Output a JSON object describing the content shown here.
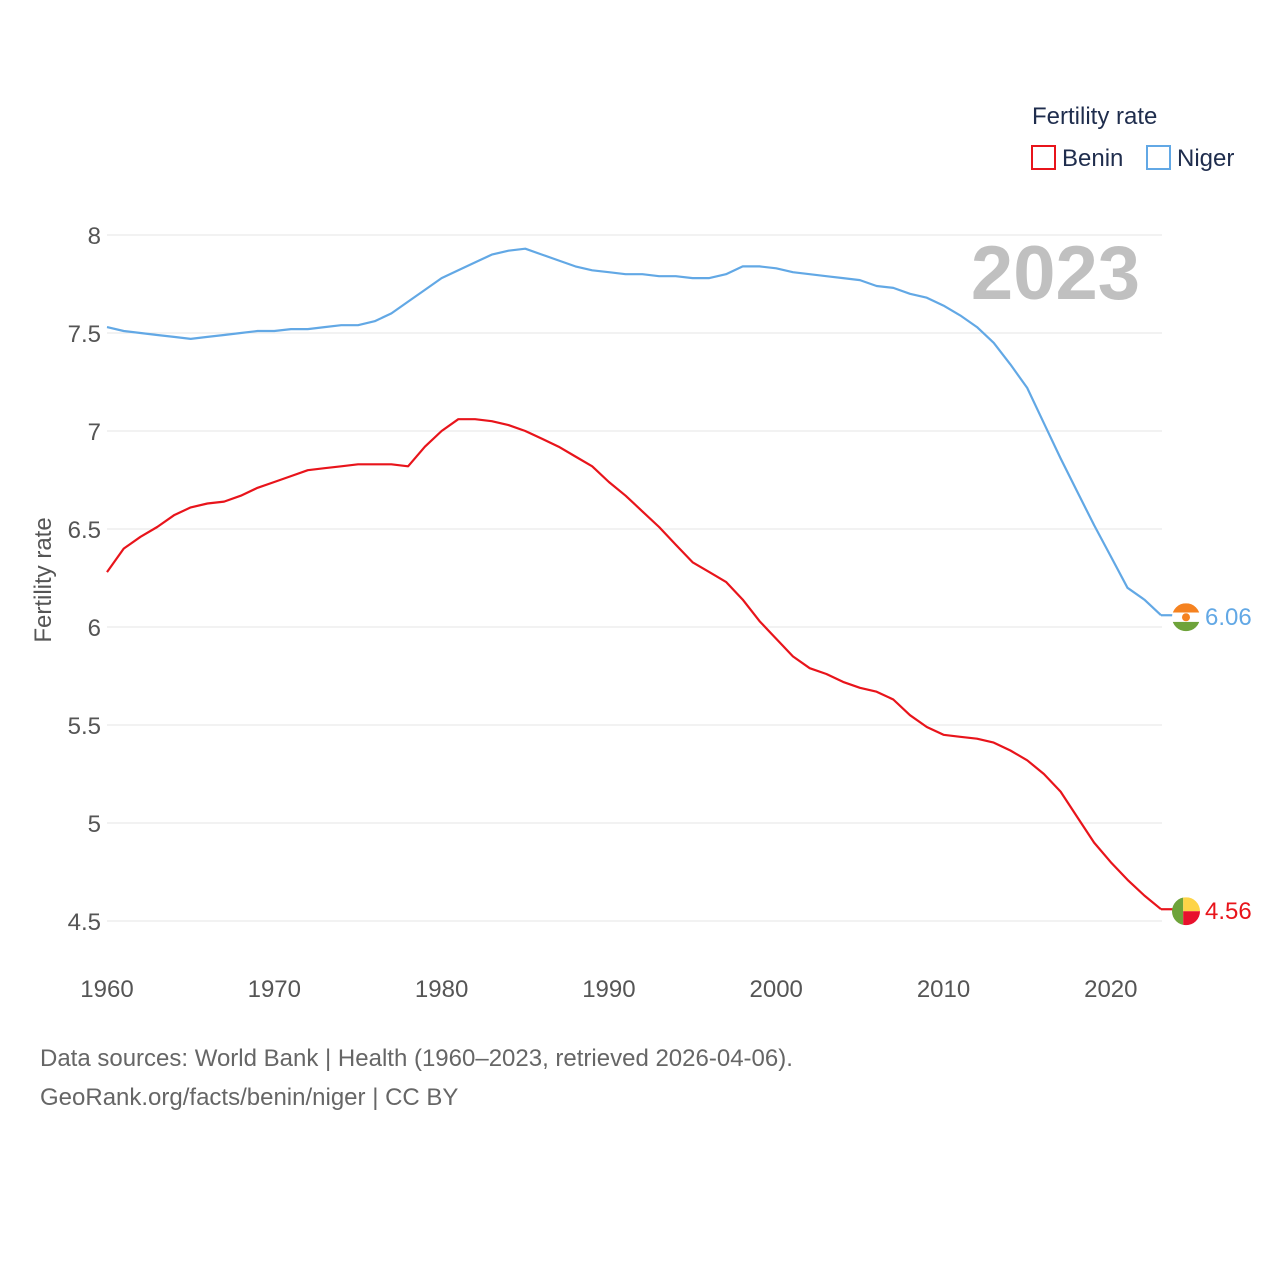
{
  "chart_data": {
    "type": "line",
    "title": "Fertility rate",
    "ylabel": "Fertility rate",
    "xlabel": "",
    "year_label": "2023",
    "xlim": [
      1960,
      2023
    ],
    "ylim": [
      4.45,
      8.1
    ],
    "xticks": [
      "1960",
      "1970",
      "1980",
      "1990",
      "2000",
      "2010",
      "2020"
    ],
    "yticks": [
      "4.5",
      "5",
      "5.5",
      "6",
      "6.5",
      "7",
      "7.5",
      "8"
    ],
    "legend_position": "top-right",
    "x": [
      1960,
      1961,
      1962,
      1963,
      1964,
      1965,
      1966,
      1967,
      1968,
      1969,
      1970,
      1971,
      1972,
      1973,
      1974,
      1975,
      1976,
      1977,
      1978,
      1979,
      1980,
      1981,
      1982,
      1983,
      1984,
      1985,
      1986,
      1987,
      1988,
      1989,
      1990,
      1991,
      1992,
      1993,
      1994,
      1995,
      1996,
      1997,
      1998,
      1999,
      2000,
      2001,
      2002,
      2003,
      2004,
      2005,
      2006,
      2007,
      2008,
      2009,
      2010,
      2011,
      2012,
      2013,
      2014,
      2015,
      2016,
      2017,
      2018,
      2019,
      2020,
      2021,
      2022,
      2023
    ],
    "series": [
      {
        "name": "Benin",
        "color": "#e8141b",
        "end_label": "4.56",
        "flag": "benin-flag",
        "values": [
          6.28,
          6.4,
          6.46,
          6.51,
          6.57,
          6.61,
          6.63,
          6.64,
          6.67,
          6.71,
          6.74,
          6.77,
          6.8,
          6.81,
          6.82,
          6.83,
          6.83,
          6.83,
          6.82,
          6.92,
          7.0,
          7.06,
          7.06,
          7.05,
          7.03,
          7.0,
          6.96,
          6.92,
          6.87,
          6.82,
          6.74,
          6.67,
          6.59,
          6.51,
          6.42,
          6.33,
          6.28,
          6.23,
          6.14,
          6.03,
          5.94,
          5.85,
          5.79,
          5.76,
          5.72,
          5.69,
          5.67,
          5.63,
          5.55,
          5.49,
          5.45,
          5.44,
          5.43,
          5.41,
          5.37,
          5.32,
          5.25,
          5.16,
          5.03,
          4.9,
          4.8,
          4.71,
          4.63,
          4.56
        ]
      },
      {
        "name": "Niger",
        "color": "#62a8e5",
        "end_label": "6.06",
        "flag": "niger-flag",
        "values": [
          7.53,
          7.51,
          7.5,
          7.49,
          7.48,
          7.47,
          7.48,
          7.49,
          7.5,
          7.51,
          7.51,
          7.52,
          7.52,
          7.53,
          7.54,
          7.54,
          7.56,
          7.6,
          7.66,
          7.72,
          7.78,
          7.82,
          7.86,
          7.9,
          7.92,
          7.93,
          7.9,
          7.87,
          7.84,
          7.82,
          7.81,
          7.8,
          7.8,
          7.79,
          7.79,
          7.78,
          7.78,
          7.8,
          7.84,
          7.84,
          7.83,
          7.81,
          7.8,
          7.79,
          7.78,
          7.77,
          7.74,
          7.73,
          7.7,
          7.68,
          7.64,
          7.59,
          7.53,
          7.45,
          7.34,
          7.22,
          7.04,
          6.86,
          6.69,
          6.52,
          6.36,
          6.2,
          6.14,
          6.06
        ]
      }
    ]
  },
  "footer": {
    "line1": "Data sources: World Bank | Health (1960–2023, retrieved 2026-04-06).",
    "line2": "GeoRank.org/facts/benin/niger | CC BY"
  }
}
